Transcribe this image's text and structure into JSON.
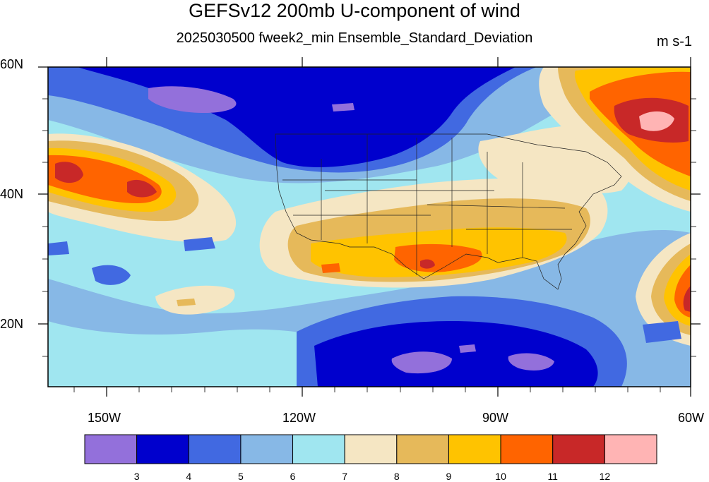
{
  "title": "GEFSv12 200mb U-component of wind",
  "subtitle": "2025030500 fweek2_min Ensemble_Standard_Deviation",
  "units": "m s-1",
  "lat_labels": [
    "60N",
    "40N",
    "20N"
  ],
  "lon_labels": [
    "150W",
    "120W",
    "90W",
    "60W"
  ],
  "colorbar": {
    "levels": [
      "3",
      "4",
      "5",
      "6",
      "7",
      "8",
      "9",
      "10",
      "11",
      "12"
    ],
    "colors": [
      "#9370db",
      "#0000cd",
      "#4169e1",
      "#87b8e6",
      "#a0e6f0",
      "#f5e6c3",
      "#e6b95a",
      "#ffc300",
      "#ff6400",
      "#c82828",
      "#ffb4b4"
    ]
  },
  "map_extent": {
    "lon_min": -159,
    "lon_max": -60,
    "lat_min": 10,
    "lat_max": 60
  }
}
